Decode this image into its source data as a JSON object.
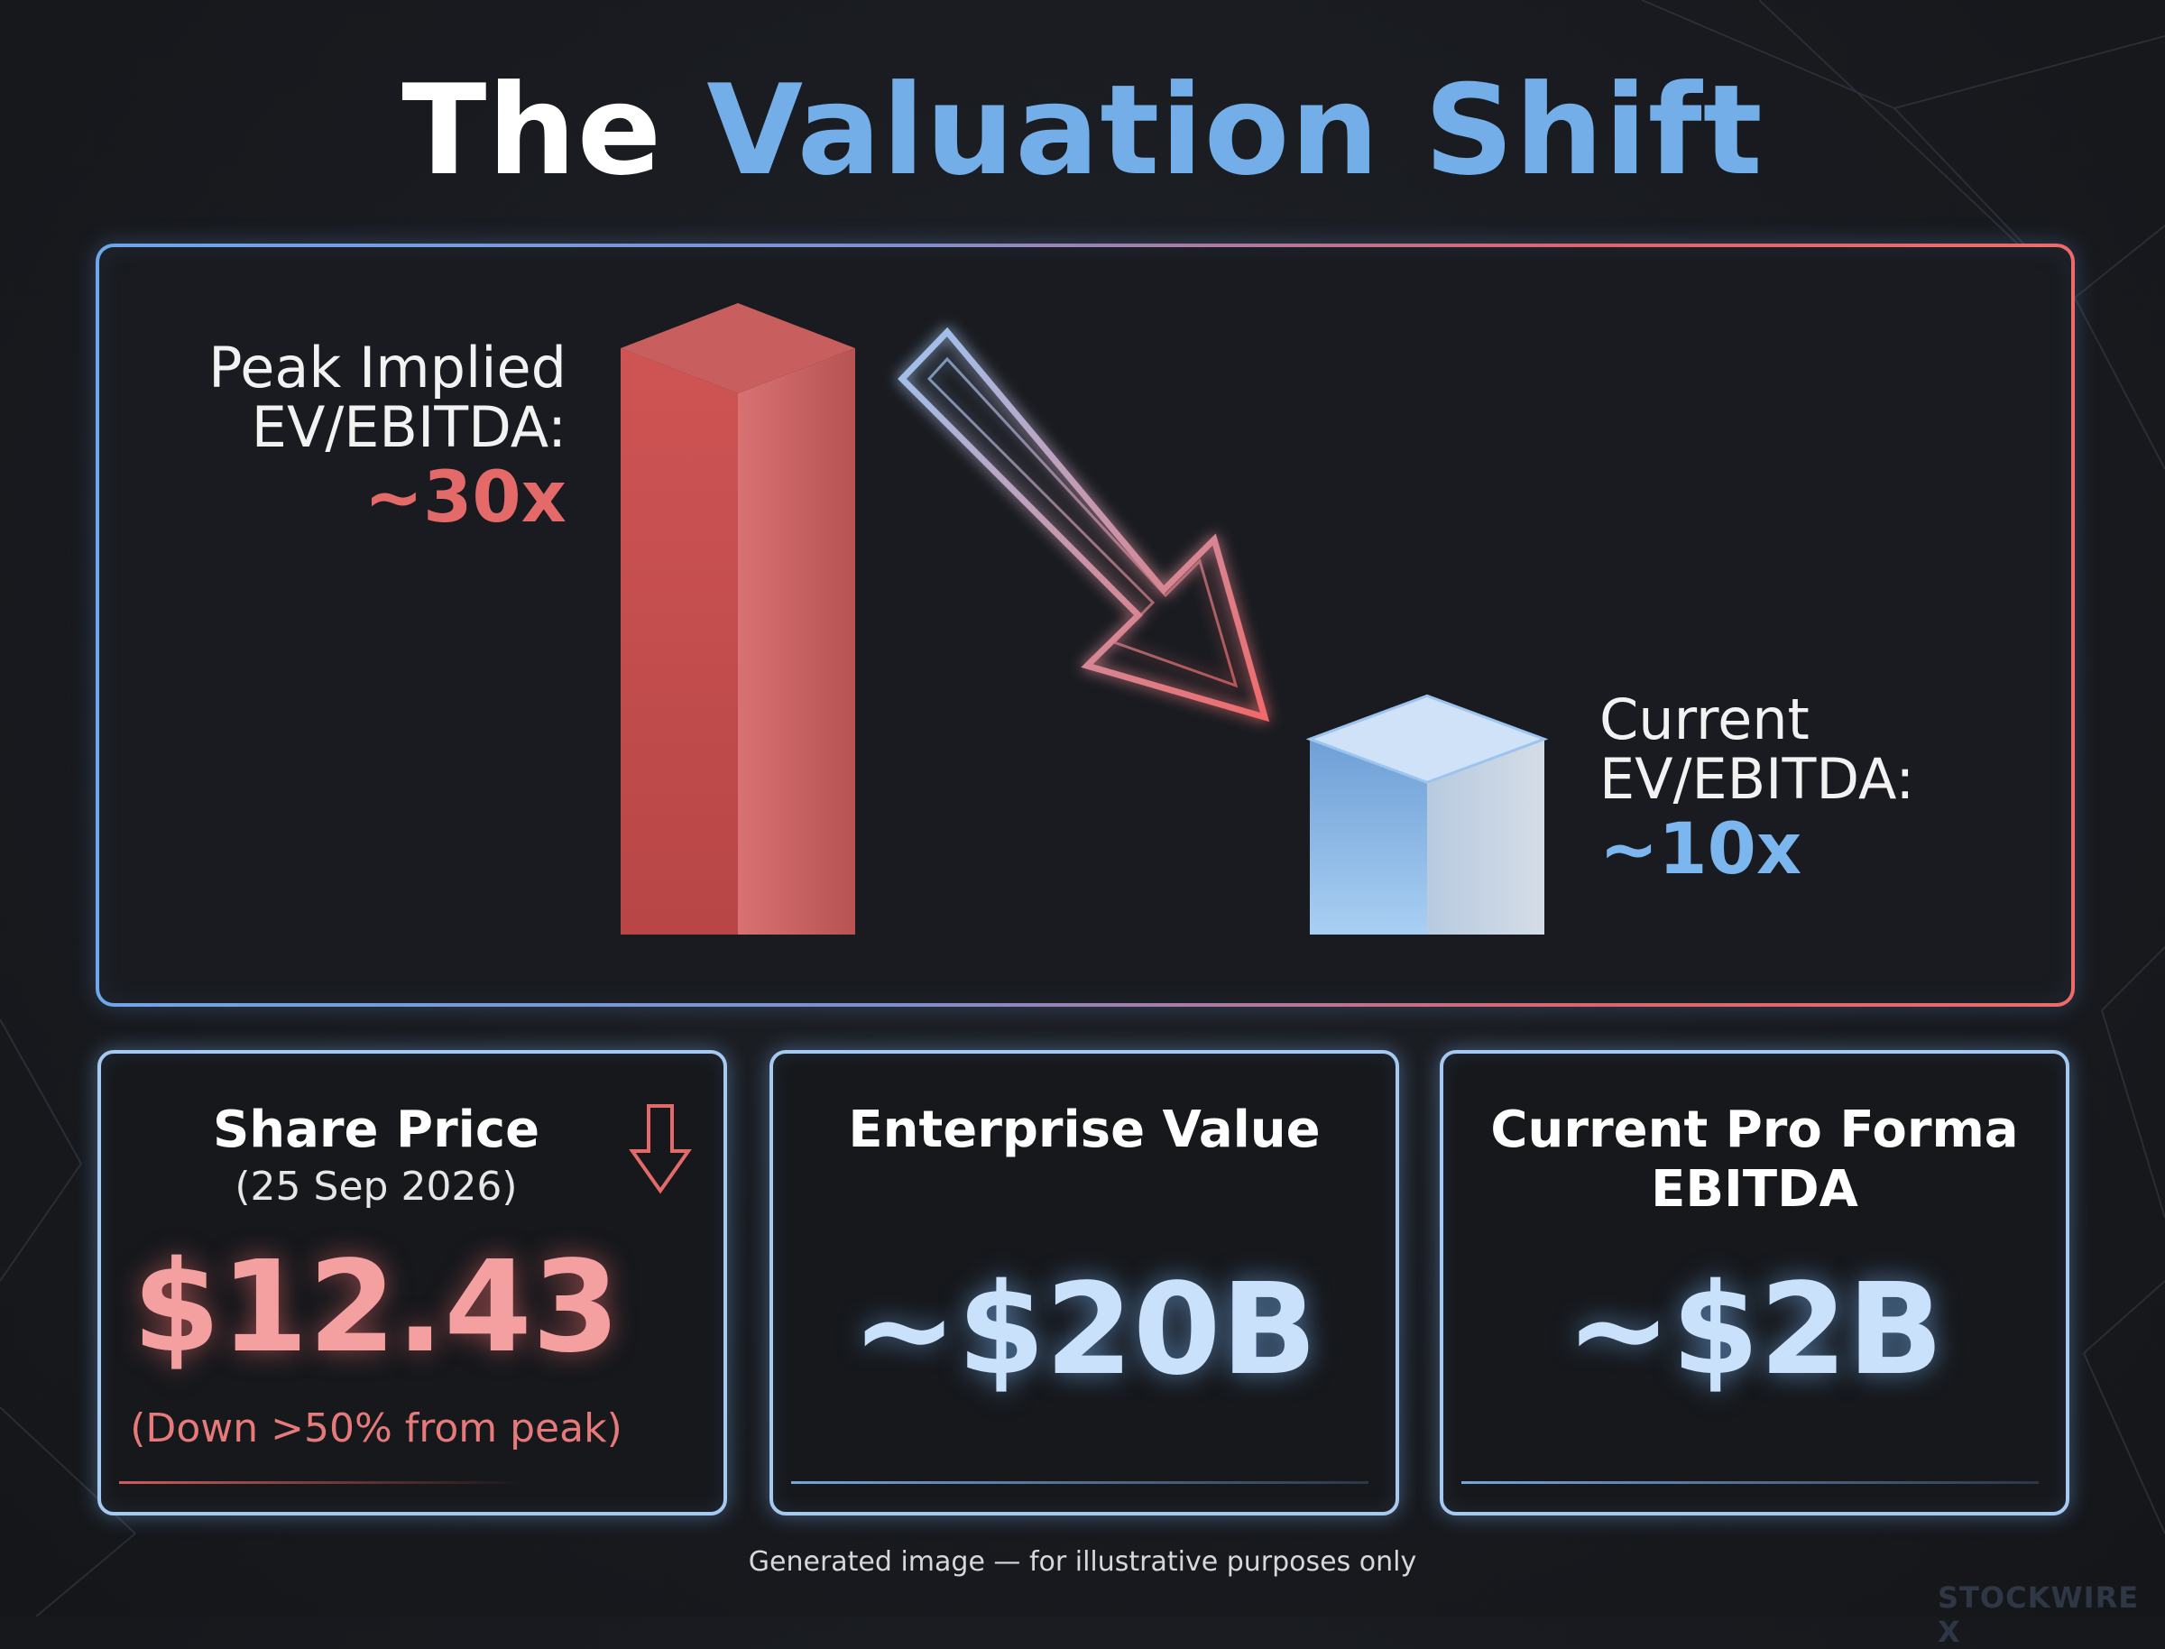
{
  "title": {
    "part1": "The",
    "part2": "Valuation Shift"
  },
  "colors": {
    "peak": "#e46a6a",
    "current": "#7cb6ee",
    "accent_blue": "#74aee8",
    "background": "#181a1f"
  },
  "chart_data": {
    "type": "bar",
    "categories": [
      "Peak Implied EV/EBITDA",
      "Current EV/EBITDA"
    ],
    "values": [
      30,
      10
    ],
    "labels": [
      {
        "line1": "Peak Implied",
        "line2": "EV/EBITDA:",
        "value": "~30x"
      },
      {
        "line1": "Current",
        "line2": "EV/EBITDA:",
        "value": "~10x"
      }
    ],
    "ylim": [
      0,
      30
    ],
    "grid": false,
    "annotation": "arrow-down-right"
  },
  "cards": [
    {
      "title": "Share Price",
      "subtitle": "(25 Sep 2026)",
      "value": "$12.43",
      "note": "(Down >50% from peak)",
      "icon": "down-arrow-icon"
    },
    {
      "title": "Enterprise Value",
      "value": "~$20B"
    },
    {
      "title": "Current Pro Forma",
      "title2": "EBITDA",
      "value": "~$2B"
    }
  ],
  "footer": {
    "note": "Generated image — for illustrative purposes only",
    "brand": "STOCKWIRE X"
  }
}
